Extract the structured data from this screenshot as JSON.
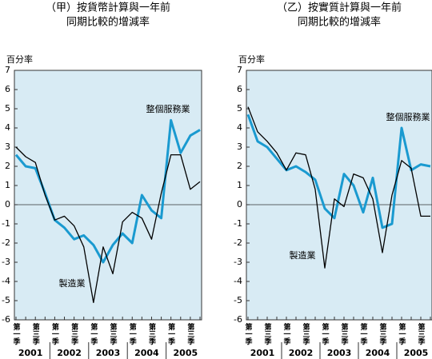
{
  "chart_data": [
    {
      "type": "line",
      "title": "（甲）按貨幣計算與一年前",
      "subtitle": "同期比較的增減率",
      "ylabel": "百分率",
      "categories": [
        "第一季",
        null,
        "第三季",
        null,
        "第一季",
        null,
        "第三季",
        null,
        "第一季",
        null,
        "第三季",
        null,
        "第一季",
        null,
        "第三季",
        null,
        "第一季",
        null,
        "第三季",
        null
      ],
      "groups": [
        "2001",
        "2002",
        "2003",
        "2004",
        "2005"
      ],
      "ylim": [
        -6,
        7
      ],
      "yticks": [
        -6,
        -5,
        -4,
        -3,
        -2,
        -1,
        0,
        1,
        2,
        3,
        4,
        5,
        6,
        7
      ],
      "series": [
        {
          "name": "整個服務業",
          "color": "#1a9ad0",
          "values": [
            2.6,
            2.0,
            1.9,
            0.6,
            -0.8,
            -1.2,
            -1.8,
            -1.6,
            -2.1,
            -3.0,
            -2.1,
            -1.5,
            -2.0,
            0.5,
            -0.3,
            -0.7,
            4.4,
            2.7,
            3.6,
            3.9
          ]
        },
        {
          "name": "製造業",
          "color": "#000000",
          "values": [
            3.0,
            2.5,
            2.2,
            0.5,
            -0.8,
            -0.6,
            -1.1,
            -2.2,
            -5.1,
            -2.2,
            -3.6,
            -0.9,
            -0.4,
            -0.7,
            -1.8,
            0.6,
            2.6,
            2.6,
            0.8,
            1.2
          ]
        }
      ]
    },
    {
      "type": "line",
      "title": "（乙）按實質計算與一年前",
      "subtitle": "同期比較的增減率",
      "ylabel": "百分率",
      "categories": [
        "第一季",
        null,
        "第三季",
        null,
        "第一季",
        null,
        "第三季",
        null,
        "第一季",
        null,
        "第三季",
        null,
        "第一季",
        null,
        "第三季",
        null,
        "第一季",
        null,
        "第三季",
        null
      ],
      "groups": [
        "2001",
        "2002",
        "2003",
        "2004",
        "2005"
      ],
      "ylim": [
        -6,
        7
      ],
      "yticks": [
        -6,
        -5,
        -4,
        -3,
        -2,
        -1,
        0,
        1,
        2,
        3,
        4,
        5,
        6,
        7
      ],
      "series": [
        {
          "name": "整個服務業",
          "color": "#1a9ad0",
          "values": [
            4.7,
            3.3,
            3.0,
            2.4,
            1.8,
            2.0,
            1.7,
            1.3,
            -0.2,
            -0.7,
            1.6,
            1.0,
            -0.4,
            1.4,
            -1.2,
            -1.0,
            4.0,
            1.8,
            2.1,
            2.0
          ]
        },
        {
          "name": "製造業",
          "color": "#000000",
          "values": [
            5.1,
            3.8,
            3.3,
            2.7,
            1.8,
            2.7,
            2.6,
            0.8,
            -3.3,
            0.3,
            -0.1,
            1.6,
            1.4,
            0.3,
            -2.5,
            0.5,
            2.3,
            1.9,
            -0.6,
            -0.6
          ]
        }
      ]
    }
  ]
}
